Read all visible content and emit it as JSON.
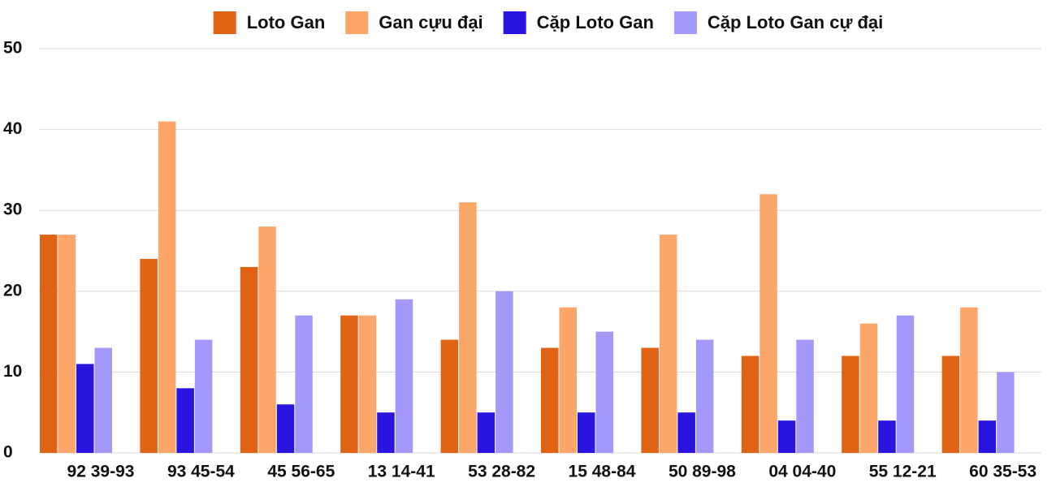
{
  "chart_data": {
    "type": "bar",
    "categories": [
      "92 39-93",
      "93 45-54",
      "45 56-65",
      "13 14-41",
      "53 28-82",
      "15 48-84",
      "50 89-98",
      "04 04-40",
      "55 12-21",
      "60 35-53"
    ],
    "series": [
      {
        "name": "Loto Gan",
        "color": "#e06314",
        "values": [
          27,
          24,
          23,
          17,
          14,
          13,
          13,
          12,
          12,
          12
        ]
      },
      {
        "name": "Gan cựu đại",
        "color": "#fca66a",
        "values": [
          27,
          41,
          28,
          17,
          31,
          18,
          27,
          32,
          16,
          18
        ]
      },
      {
        "name": "Cặp Loto Gan",
        "color": "#2a14e0",
        "values": [
          11,
          8,
          6,
          5,
          5,
          5,
          5,
          4,
          4,
          4
        ]
      },
      {
        "name": "Cặp Loto Gan cự đại",
        "color": "#a399fb",
        "values": [
          13,
          14,
          17,
          19,
          20,
          15,
          14,
          14,
          17,
          10
        ]
      }
    ],
    "ylim": [
      0,
      50
    ],
    "yticks": [
      0,
      10,
      20,
      30,
      40,
      50
    ],
    "grid": true,
    "legend": "top"
  }
}
